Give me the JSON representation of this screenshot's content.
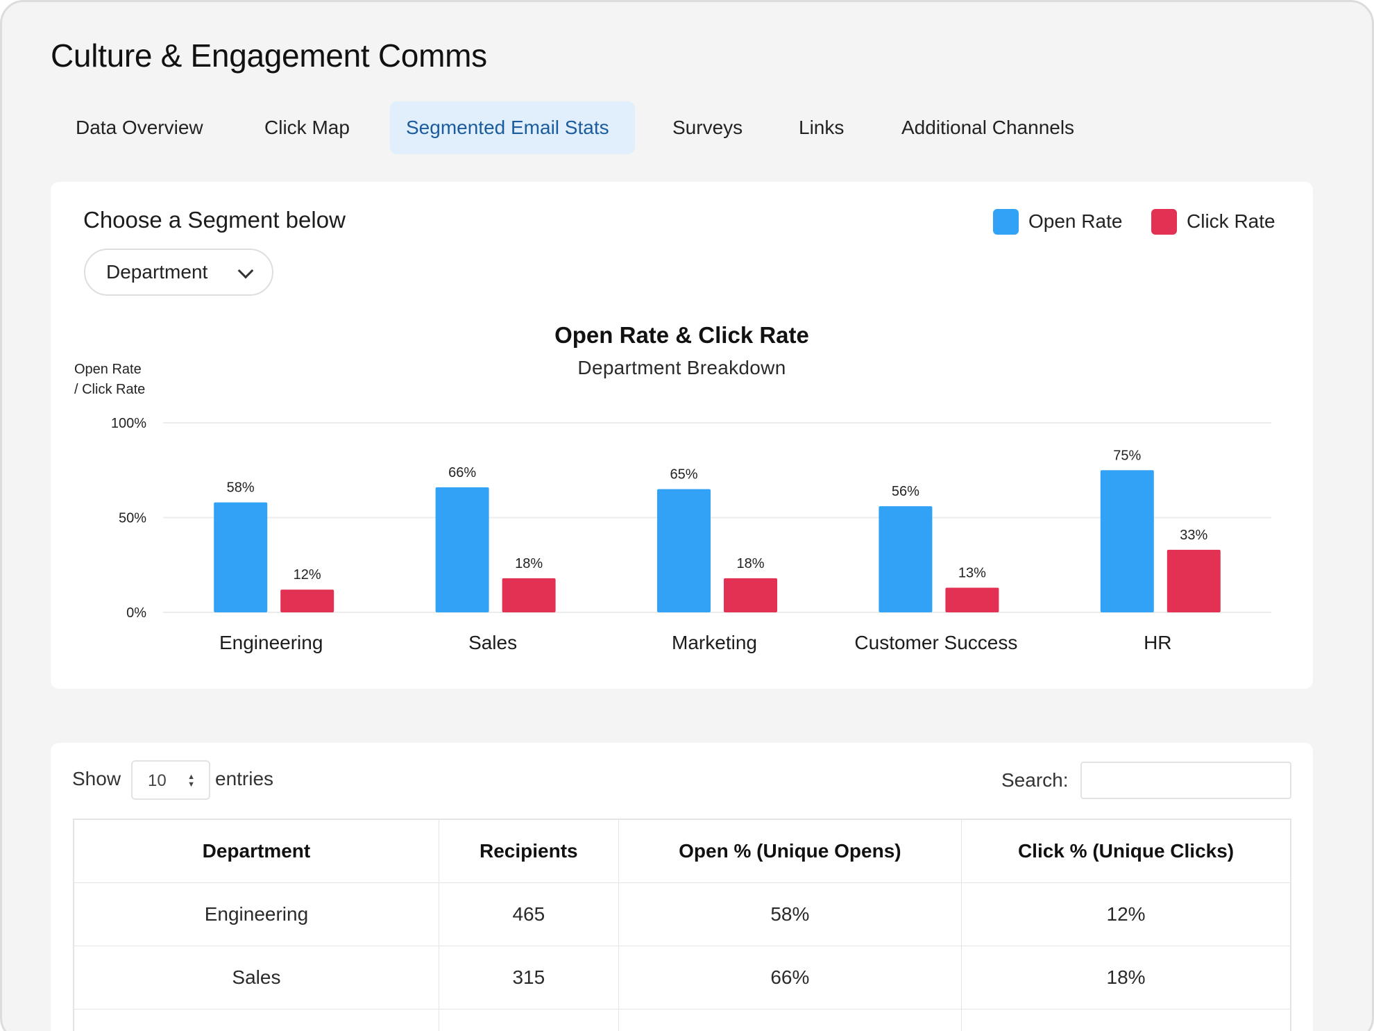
{
  "page": {
    "title": "Culture & Engagement Comms"
  },
  "tabs": [
    {
      "label": "Data Overview",
      "active": false
    },
    {
      "label": "Click Map",
      "active": false
    },
    {
      "label": "Segmented Email Stats",
      "active": true
    },
    {
      "label": "Surveys",
      "active": false
    },
    {
      "label": "Links",
      "active": false
    },
    {
      "label": "Additional Channels",
      "active": false
    }
  ],
  "segment": {
    "label": "Choose a Segment below",
    "selected": "Department"
  },
  "legend": [
    {
      "label": "Open Rate",
      "color": "#32a2f7"
    },
    {
      "label": "Click Rate",
      "color": "#e23152"
    }
  ],
  "chart_data": {
    "type": "bar",
    "title": "Open Rate & Click Rate",
    "subtitle": "Department Breakdown",
    "ylabel_lines": [
      "Open Rate",
      "/ Click Rate"
    ],
    "ylim": [
      0,
      100
    ],
    "yticks": [
      "0%",
      "50%",
      "100%"
    ],
    "grid": true,
    "legend_position": "top-right",
    "categories": [
      "Engineering",
      "Sales",
      "Marketing",
      "Customer Success",
      "HR"
    ],
    "series": [
      {
        "name": "Open Rate",
        "color": "#32a2f7",
        "values": [
          58,
          66,
          65,
          56,
          75
        ],
        "labels": [
          "58%",
          "66%",
          "65%",
          "56%",
          "75%"
        ]
      },
      {
        "name": "Click Rate",
        "color": "#e23152",
        "values": [
          12,
          18,
          18,
          13,
          33
        ],
        "labels": [
          "12%",
          "18%",
          "18%",
          "13%",
          "33%"
        ]
      }
    ]
  },
  "table_controls": {
    "show_label": "Show",
    "page_length": "10",
    "entries_label": "entries",
    "search_label": "Search:",
    "search_value": ""
  },
  "table": {
    "headers": [
      "Department",
      "Recipients",
      "Open % (Unique Opens)",
      "Click % (Unique Clicks)"
    ],
    "rows": [
      [
        "Engineering",
        "465",
        "58%",
        "12%"
      ],
      [
        "Sales",
        "315",
        "66%",
        "18%"
      ],
      [
        "",
        "",
        "",
        ""
      ]
    ]
  }
}
